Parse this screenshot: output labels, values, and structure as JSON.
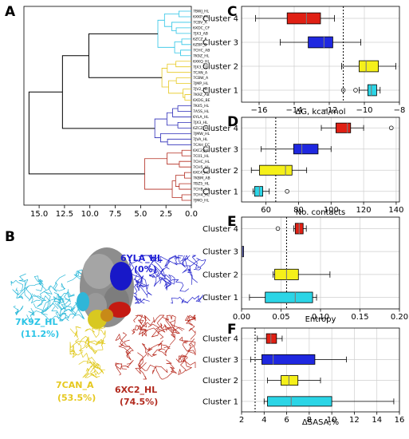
{
  "panels": {
    "A": {
      "letter": "A"
    },
    "B": {
      "letter": "B"
    },
    "C": {
      "letter": "C"
    },
    "D": {
      "letter": "D"
    },
    "E": {
      "letter": "E"
    },
    "F": {
      "letter": "F"
    }
  },
  "dendrogram": {
    "leaves": [
      "7BWJ_HL",
      "6XKP_HL",
      "7CBV_A",
      "6XDC_CF",
      "7JX3_AB",
      "6ZCZ_F",
      "6ZBP_B",
      "7CHC_AB",
      "7K9Z_HL",
      "6XKQ_HL",
      "7JX3_CD",
      "7CAN_A",
      "7CBW_A",
      "7JMP_HL",
      "7JV2_HL",
      "7K9Z_AB",
      "6XDG_BE",
      "7K45_HL",
      "7A5S_HL",
      "6YLA_HL",
      "7JX3_HL",
      "6ZCZ_HL",
      "7JMW_HL",
      "7JVA_HL",
      "7CAH_EC",
      "6XC2_HL",
      "7C01_HL",
      "7CHC_HL",
      "7CH5_HL",
      "6XC4_HL",
      "7KBM_AB",
      "7BZ5_HL",
      "7CHB_HL",
      "7CH4_HL",
      "7JMO_HL"
    ],
    "leaf_colors": [
      "#2bc4e6",
      "#2bc4e6",
      "#2bc4e6",
      "#2bc4e6",
      "#2bc4e6",
      "#2bc4e6",
      "#2bc4e6",
      "#2bc4e6",
      "#2bc4e6",
      "#e6c81e",
      "#e6c81e",
      "#e6c81e",
      "#e6c81e",
      "#e6c81e",
      "#e6c81e",
      "#e6c81e",
      "#e6c81e",
      "#2b2bb8",
      "#2b2bb8",
      "#2b2bb8",
      "#2b2bb8",
      "#2b2bb8",
      "#2b2bb8",
      "#2b2bb8",
      "#2b2bb8",
      "#b22a1e",
      "#b22a1e",
      "#b22a1e",
      "#b22a1e",
      "#b22a1e",
      "#b22a1e",
      "#b22a1e",
      "#b22a1e",
      "#b22a1e",
      "#b22a1e"
    ],
    "x_ticks": [
      "15.0",
      "12.5",
      "10.0",
      "7.5",
      "5.0",
      "2.5",
      "0.0"
    ],
    "x_range": [
      0,
      16.5
    ]
  },
  "structure": {
    "labels": [
      {
        "text": "6YLA_HL",
        "sub": "(0%)",
        "color": "#1f1fd6"
      },
      {
        "text": "7K9Z_HL",
        "sub": "(11.2%)",
        "color": "#2bc4e6"
      },
      {
        "text": "7CAN_A",
        "sub": "(53.5%)",
        "color": "#e6c81e"
      },
      {
        "text": "6XC2_HL",
        "sub": "(74.5%)",
        "color": "#b22a1e"
      }
    ]
  },
  "chart_data": [
    {
      "type": "box",
      "panel": "C",
      "xlabel": "ΔG, kcal/mol",
      "categories": [
        "Cluster 1",
        "Cluster 2",
        "Cluster 3",
        "Cluster 4"
      ],
      "colors": [
        "#2bd5e6",
        "#f5f01a",
        "#1f28e0",
        "#e02014"
      ],
      "boxes": [
        {
          "whislo": -10.3,
          "q1": -9.8,
          "med": -9.6,
          "q3": -9.3,
          "whishi": -9.1,
          "fliers": [
            -11.2,
            -10.5
          ]
        },
        {
          "whislo": -11.3,
          "q1": -10.3,
          "med": -9.9,
          "q3": -9.2,
          "whishi": -8.2,
          "fliers": []
        },
        {
          "whislo": -14.8,
          "q1": -13.2,
          "med": -12.3,
          "q3": -11.8,
          "whishi": -10.2,
          "fliers": []
        },
        {
          "whislo": -16.2,
          "q1": -14.4,
          "med": -13.3,
          "q3": -12.5,
          "whishi": -11.7,
          "fliers": []
        }
      ],
      "ref_line": -11.2,
      "xlim": [
        -17,
        -8
      ],
      "xticks": [
        -16,
        -14,
        -12,
        -10,
        -8
      ],
      "xtick_labels": [
        "−16",
        "−14",
        "−12",
        "−10",
        "−8"
      ]
    },
    {
      "type": "box",
      "panel": "D",
      "xlabel": "No. contacts",
      "categories": [
        "Cluster 1",
        "Cluster 2",
        "Cluster 3",
        "Cluster 4"
      ],
      "colors": [
        "#2bd5e6",
        "#f5f01a",
        "#1f28e0",
        "#e02014"
      ],
      "boxes": [
        {
          "whislo": 52,
          "q1": 53,
          "med": 56,
          "q3": 58,
          "whishi": 62,
          "fliers": [
            73
          ]
        },
        {
          "whislo": 51,
          "q1": 56,
          "med": 72,
          "q3": 76,
          "whishi": 85,
          "fliers": []
        },
        {
          "whislo": 57,
          "q1": 77,
          "med": 82,
          "q3": 92,
          "whishi": 100,
          "fliers": []
        },
        {
          "whislo": 94,
          "q1": 103,
          "med": 110,
          "q3": 112,
          "whishi": 120,
          "fliers": [
            137
          ]
        }
      ],
      "ref_line": 66,
      "xlim": [
        45,
        142
      ],
      "xticks": [
        60,
        80,
        100,
        120,
        140
      ],
      "xtick_labels": [
        "60",
        "80",
        "100",
        "120",
        "140"
      ]
    },
    {
      "type": "box",
      "panel": "E",
      "xlabel": "Entropy",
      "categories": [
        "Cluster 1",
        "Cluster 2",
        "Cluster 3",
        "Cluster 4"
      ],
      "colors": [
        "#2bd5e6",
        "#f5f01a",
        "#1f28e0",
        "#e02014"
      ],
      "boxes": [
        {
          "whislo": 0.01,
          "q1": 0.03,
          "med": 0.068,
          "q3": 0.09,
          "whishi": 0.095,
          "fliers": []
        },
        {
          "whislo": 0.04,
          "q1": 0.042,
          "med": 0.057,
          "q3": 0.072,
          "whishi": 0.112,
          "fliers": []
        },
        {
          "whislo": 0.001,
          "q1": 0.001,
          "med": 0.001,
          "q3": 0.002,
          "whishi": 0.002,
          "fliers": []
        },
        {
          "whislo": 0.066,
          "q1": 0.068,
          "med": 0.073,
          "q3": 0.078,
          "whishi": 0.082,
          "fliers": [
            0.046
          ]
        }
      ],
      "ref_line": 0.057,
      "xlim": [
        0,
        0.2
      ],
      "xticks": [
        0,
        0.05,
        0.1,
        0.15,
        0.2
      ],
      "xtick_labels": [
        "0.00",
        "0.05",
        "0.10",
        "0.15",
        "0.20"
      ]
    },
    {
      "type": "box",
      "panel": "F",
      "xlabel": "ΔSASA,%",
      "categories": [
        "Cluster 1",
        "Cluster 2",
        "Cluster 3",
        "Cluster 4"
      ],
      "colors": [
        "#2bd5e6",
        "#f5f01a",
        "#1f28e0",
        "#e02014"
      ],
      "boxes": [
        {
          "whislo": 4.0,
          "q1": 4.3,
          "med": 6.4,
          "q3": 10.0,
          "whishi": 15.5,
          "fliers": []
        },
        {
          "whislo": 4.3,
          "q1": 5.5,
          "med": 6.2,
          "q3": 7.0,
          "whishi": 9.0,
          "fliers": []
        },
        {
          "whislo": 2.8,
          "q1": 3.8,
          "med": 4.8,
          "q3": 8.5,
          "whishi": 11.3,
          "fliers": []
        },
        {
          "whislo": 3.4,
          "q1": 4.2,
          "med": 4.6,
          "q3": 5.1,
          "whishi": 5.6,
          "fliers": []
        }
      ],
      "ref_line": 3.2,
      "xlim": [
        2,
        16
      ],
      "xticks": [
        2,
        4,
        6,
        8,
        10,
        12,
        14,
        16
      ],
      "xtick_labels": [
        "2",
        "4",
        "6",
        "8",
        "10",
        "12",
        "14",
        "16"
      ]
    }
  ]
}
